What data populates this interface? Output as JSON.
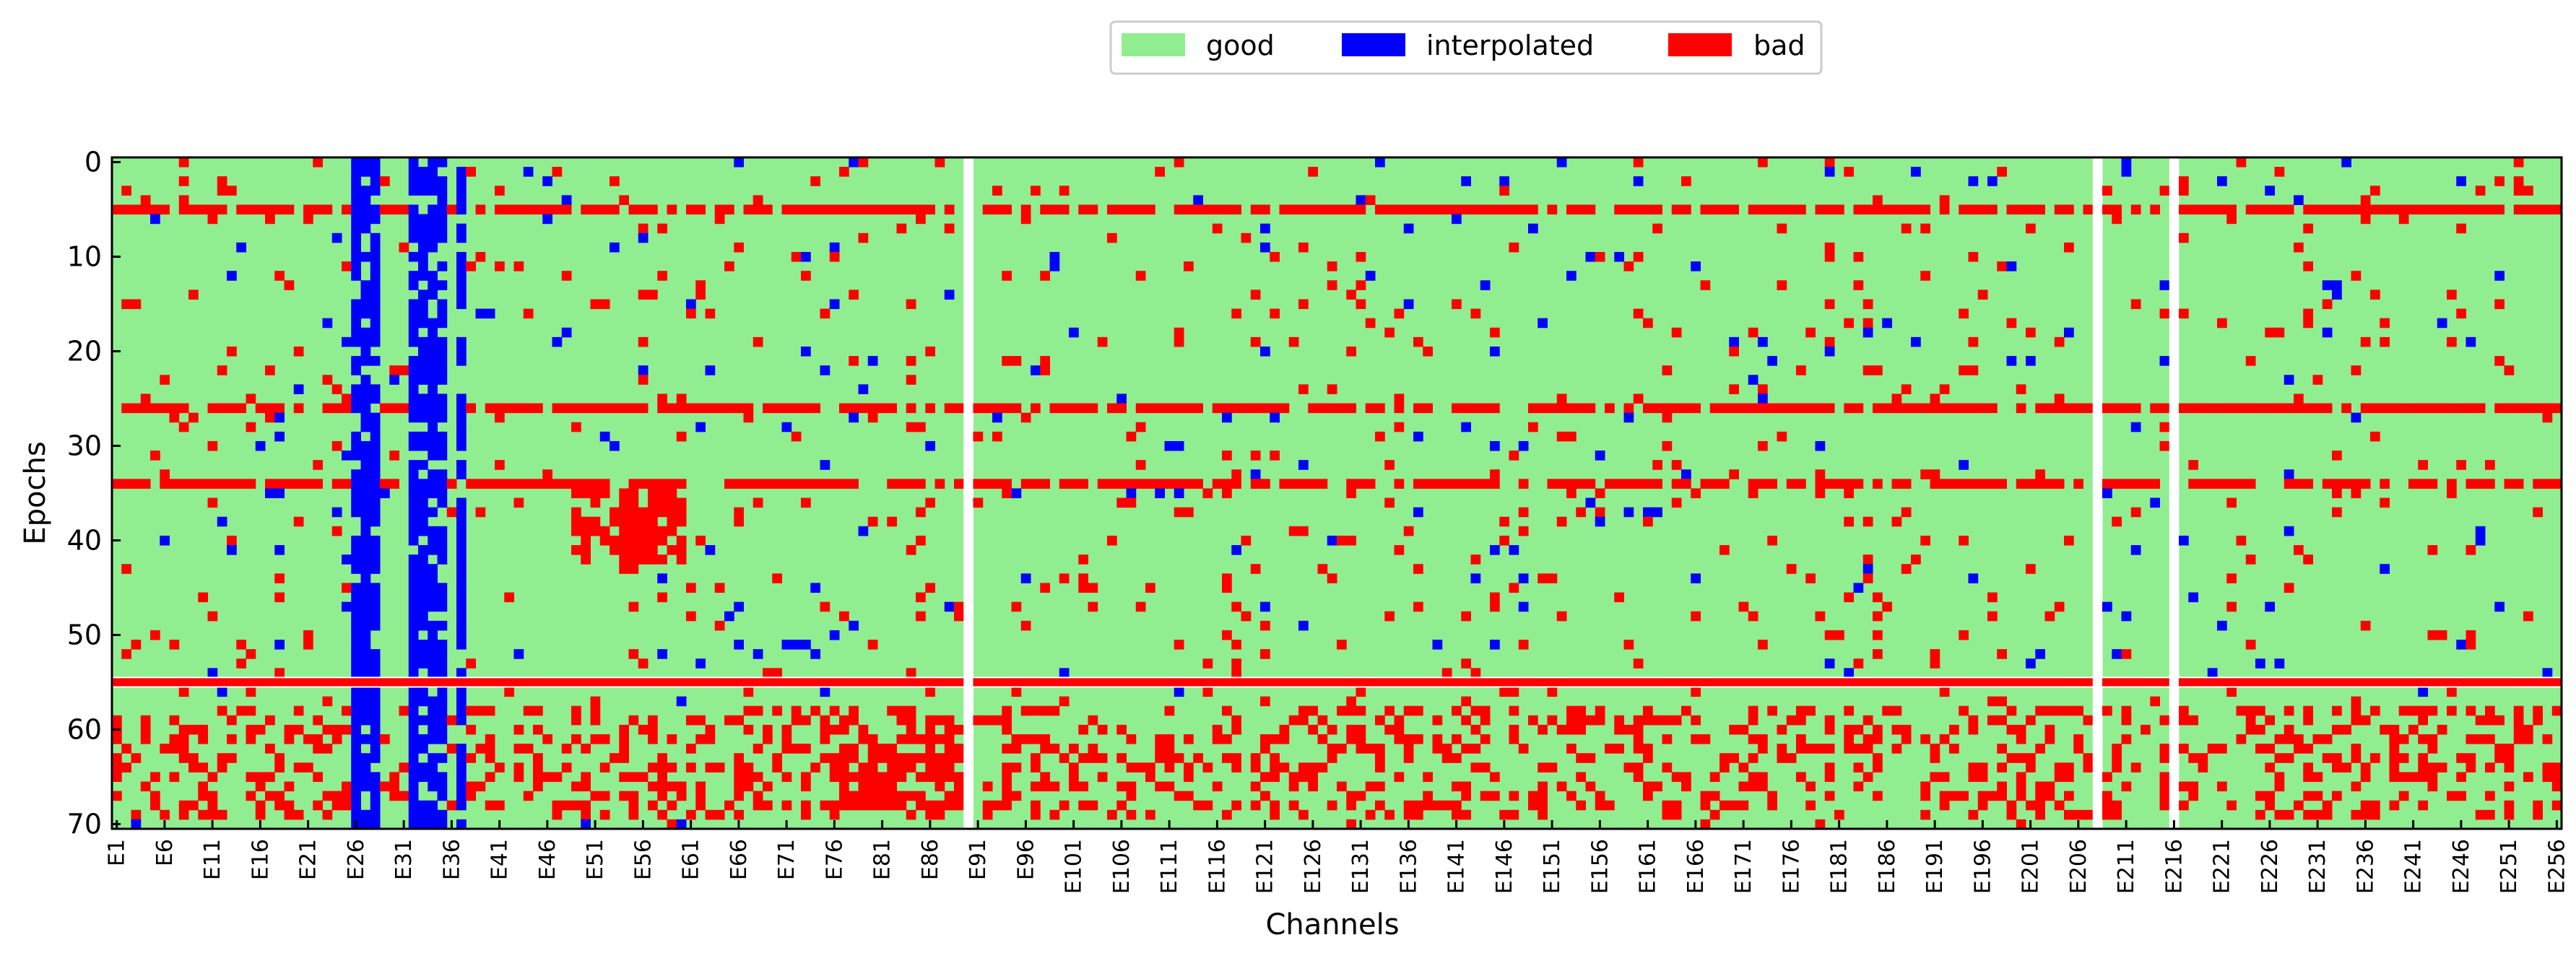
{
  "chart_data": {
    "type": "heatmap",
    "title": "",
    "xlabel": "Channels",
    "ylabel": "Epochs",
    "n_channels": 256,
    "n_epochs": 71,
    "xlim": [
      1,
      256
    ],
    "ylim": [
      0,
      70
    ],
    "legend": {
      "placement": "top-center",
      "entries": [
        {
          "label": "good",
          "color": "#90ee90"
        },
        {
          "label": "interpolated",
          "color": "#0000ff"
        },
        {
          "label": "bad",
          "color": "#ff0000"
        }
      ]
    },
    "y_ticks": [
      0,
      10,
      20,
      30,
      40,
      50,
      60,
      70
    ],
    "x_ticks": [
      "E1",
      "E6",
      "E11",
      "E16",
      "E21",
      "E26",
      "E31",
      "E36",
      "E41",
      "E46",
      "E51",
      "E56",
      "E61",
      "E66",
      "E71",
      "E76",
      "E81",
      "E86",
      "E91",
      "E96",
      "E101",
      "E106",
      "E111",
      "E116",
      "E121",
      "E126",
      "E131",
      "E136",
      "E141",
      "E146",
      "E151",
      "E156",
      "E161",
      "E166",
      "E171",
      "E176",
      "E181",
      "E186",
      "E191",
      "E196",
      "E201",
      "E206",
      "E211",
      "E216",
      "E221",
      "E226",
      "E231",
      "E236",
      "E241",
      "E246",
      "E251",
      "E256"
    ],
    "excluded_channels": [
      90,
      208,
      216
    ],
    "bad_epochs": [
      55
    ],
    "interpolated_channels": [
      26,
      27,
      28,
      32,
      33,
      34,
      35,
      37
    ],
    "bad_segments": [
      {
        "epochs": [
          5,
          5
        ],
        "channels": [
          1,
          256
        ]
      },
      {
        "epochs": [
          62,
          68
        ],
        "channels": [
          76,
          83
        ]
      },
      {
        "epochs": [
          60,
          68
        ],
        "channels": [
          84,
          89
        ]
      },
      {
        "epochs": [
          35,
          42
        ],
        "channels": [
          49,
          60
        ]
      },
      {
        "epochs": [
          26,
          26
        ],
        "channels": [
          1,
          256
        ]
      },
      {
        "epochs": [
          34,
          34
        ],
        "channels": [
          1,
          256
        ]
      }
    ]
  }
}
